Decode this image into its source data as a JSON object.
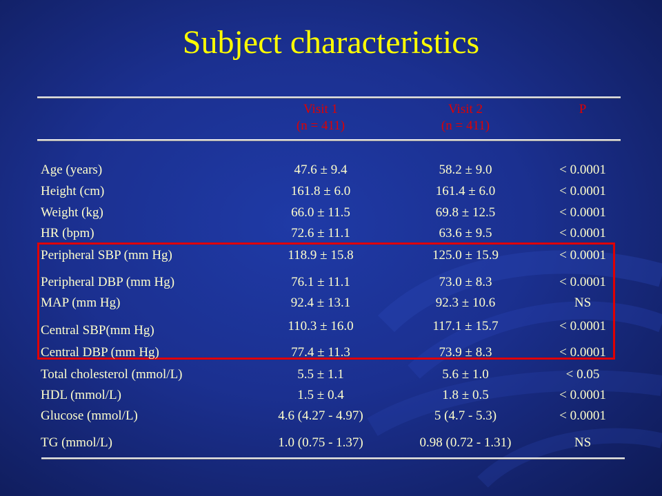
{
  "title": "Subject characteristics",
  "table": {
    "headers": [
      {
        "line1": "Visit 1",
        "line2": "(n = 411)"
      },
      {
        "line1": "Visit 2",
        "line2": "(n = 411)"
      },
      {
        "line1": "P",
        "line2": ""
      }
    ],
    "rows": [
      {
        "label": "Age (years)",
        "v1": "47.6 ± 9.4",
        "v2": "58.2 ± 9.0",
        "p": "< 0.0001"
      },
      {
        "label": "Height (cm)",
        "v1": "161.8 ± 6.0",
        "v2": "161.4 ± 6.0",
        "p": "< 0.0001"
      },
      {
        "label": "Weight (kg)",
        "v1": "66.0 ± 11.5",
        "v2": "69.8 ± 12.5",
        "p": "< 0.0001"
      },
      {
        "label": "HR (bpm)",
        "v1": "72.6 ± 11.1",
        "v2": "63.6 ± 9.5",
        "p": "< 0.0001"
      },
      {
        "label": "Peripheral SBP (mm Hg)",
        "v1": "118.9 ± 15.8",
        "v2": "125.0 ± 15.9",
        "p": "< 0.0001"
      },
      {
        "label": "Peripheral DBP (mm Hg)",
        "v1": "76.1 ± 11.1",
        "v2": "73.0 ± 8.3",
        "p": "< 0.0001"
      },
      {
        "label": "MAP (mm Hg)",
        "v1": "92.4 ± 13.1",
        "v2": "92.3 ± 10.6",
        "p": "NS"
      },
      {
        "label": "Central SBP(mm Hg)",
        "v1": "110.3 ± 16.0",
        "v2": "117.1 ± 15.7",
        "p": "< 0.0001"
      },
      {
        "label": "Central DBP (mm Hg)",
        "v1": "77.4 ± 11.3",
        "v2": "73.9 ± 8.3",
        "p": "< 0.0001"
      },
      {
        "label": "Total cholesterol (mmol/L)",
        "v1": "5.5 ± 1.1",
        "v2": "5.6 ± 1.0",
        "p": "< 0.05"
      },
      {
        "label": "HDL (mmol/L)",
        "v1": "1.5 ± 0.4",
        "v2": "1.8 ± 0.5",
        "p": "< 0.0001"
      },
      {
        "label": "Glucose (mmol/L)",
        "v1": "4.6 (4.27 - 4.97)",
        "v2": "5 (4.7 - 5.3)",
        "p": "< 0.0001"
      },
      {
        "label": "TG (mmol/L)",
        "v1": "1.0 (0.75 - 1.37)",
        "v2": "0.98 (0.72 - 1.31)",
        "p": "NS"
      }
    ]
  },
  "colors": {
    "background": "#1b3090",
    "title": "#ffff00",
    "header_text": "#e00000",
    "body_text": "#ffffcc",
    "highlight_box": "#e00000"
  }
}
